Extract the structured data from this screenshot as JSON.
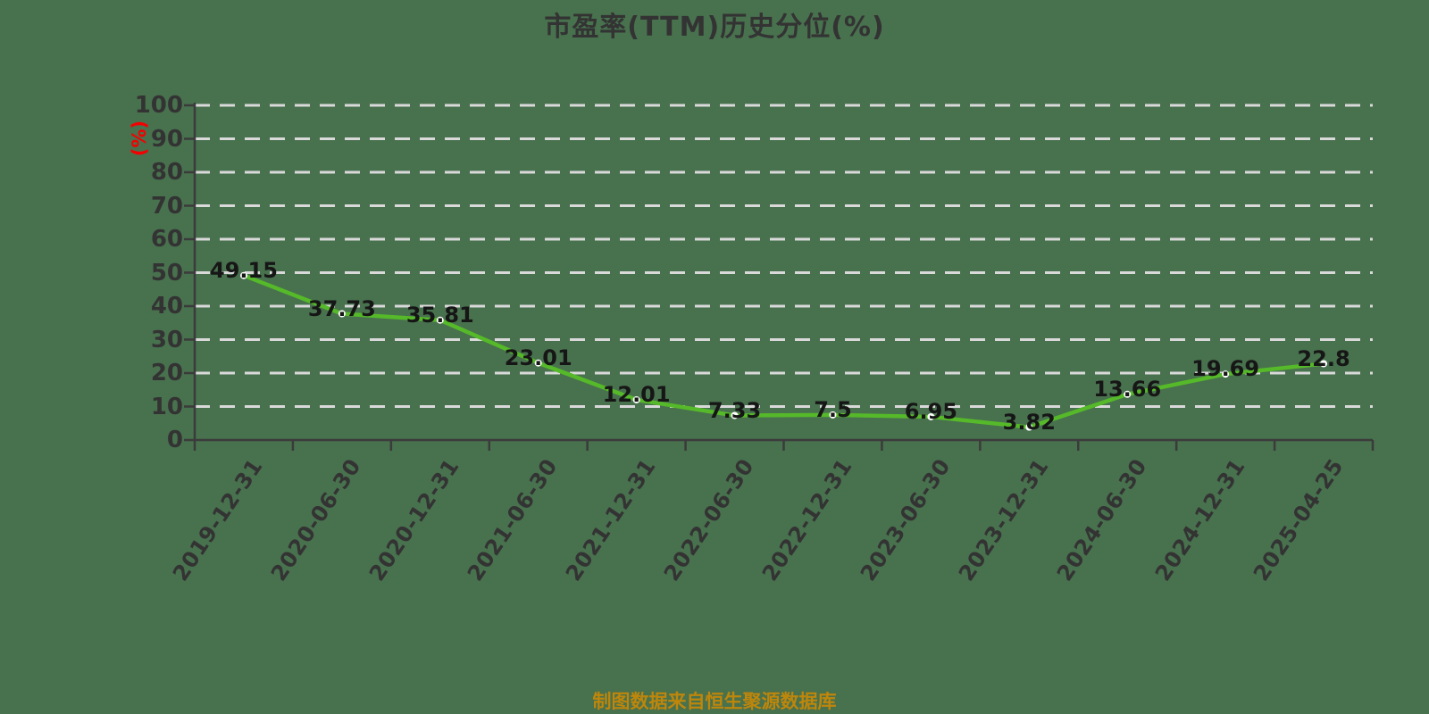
{
  "page": {
    "background_color": "#48714e"
  },
  "chart_data": {
    "type": "line",
    "title": "市盈率(TTM)历史分位(%)",
    "y_axis_unit": "(%)",
    "footer_note": "制图数据来自恒生聚源数据库",
    "categories": [
      "2019-12-31",
      "2020-06-30",
      "2020-12-31",
      "2021-06-30",
      "2021-12-31",
      "2022-06-30",
      "2022-12-31",
      "2023-06-30",
      "2023-12-31",
      "2024-06-30",
      "2024-12-31",
      "2025-04-25"
    ],
    "series": [
      {
        "name": "市盈率(TTM)历史分位(%)",
        "values": [
          49.15,
          37.73,
          35.81,
          23.01,
          12.01,
          7.33,
          7.5,
          6.95,
          3.82,
          13.66,
          19.69,
          22.8
        ]
      }
    ],
    "point_labels": [
      "49.15",
      "37.73",
      "35.81",
      "23.01",
      "12.01",
      "7.33",
      "7.5",
      "6.95",
      "3.82",
      "13.66",
      "19.69",
      "22.8"
    ],
    "ylim": [
      0,
      100
    ],
    "y_tick_step": 10,
    "y_ticks": [
      "0",
      "10",
      "20",
      "30",
      "40",
      "50",
      "60",
      "70",
      "80",
      "90",
      "100"
    ],
    "grid": {
      "horizontal_gridlines": true,
      "vertical_gridlines": false,
      "line_style": "dashed"
    },
    "legend": "none",
    "colors": {
      "background": "#48714e",
      "series_line": "#55b929",
      "marker_fill": "#ffffff",
      "grid_line": "#d9d9d9",
      "axis_line": "#3b3b3b",
      "axis_text": "#333333",
      "title_text": "#333333",
      "data_label": "#161616",
      "unit_text": "#f40000",
      "footer_text": "#be860b"
    }
  }
}
